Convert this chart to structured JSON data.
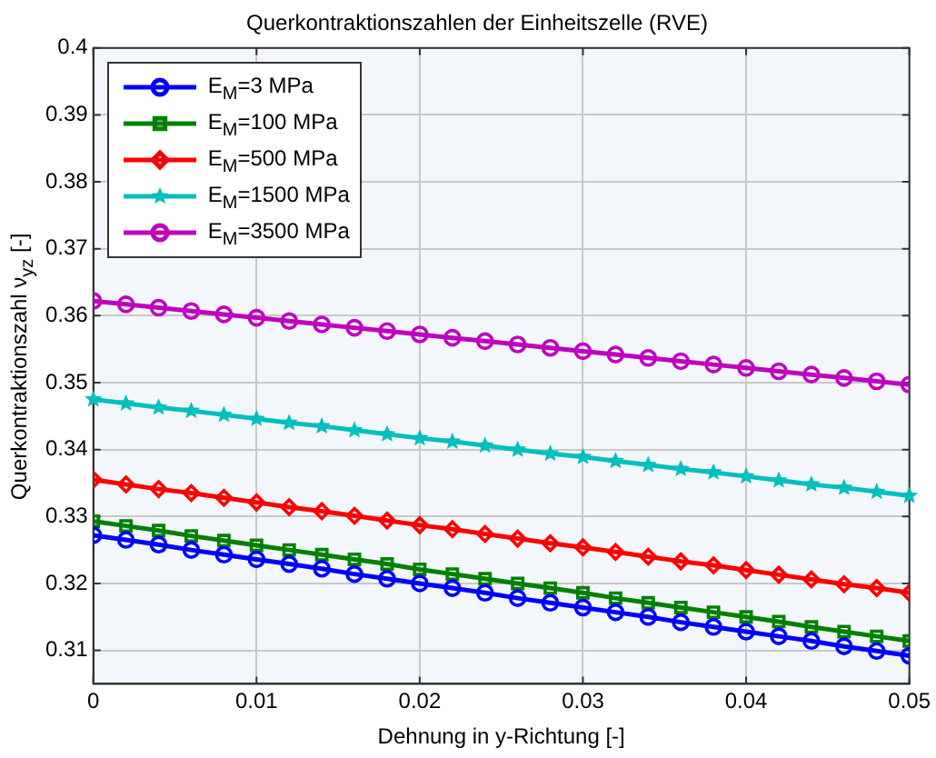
{
  "chart_data": {
    "type": "line",
    "title": "Querkontraktionszahlen der Einheitszelle (RVE)",
    "xlabel": "Dehnung in y-Richtung [-]",
    "ylabel": "Querkontraktionszahl ν$_{yz}$ [-]",
    "x": [
      0,
      0.002,
      0.004,
      0.006,
      0.008,
      0.01,
      0.012,
      0.014,
      0.016,
      0.018,
      0.02,
      0.022,
      0.024,
      0.026,
      0.028,
      0.03,
      0.032,
      0.034,
      0.036,
      0.038,
      0.04,
      0.042,
      0.044,
      0.046,
      0.048,
      0.05
    ],
    "series": [
      {
        "name": "E$_{M}$=3 MPa",
        "color": "#0000ff",
        "marker": "circle",
        "values": [
          0.3272,
          0.3265,
          0.3258,
          0.325,
          0.3243,
          0.3236,
          0.3229,
          0.3222,
          0.3214,
          0.3207,
          0.32,
          0.3193,
          0.3186,
          0.3178,
          0.3171,
          0.3164,
          0.3157,
          0.315,
          0.3142,
          0.3135,
          0.3128,
          0.3121,
          0.3114,
          0.3106,
          0.3099,
          0.3092
        ]
      },
      {
        "name": "E$_{M}$=100 MPa",
        "color": "#008000",
        "marker": "square",
        "values": [
          0.3293,
          0.3286,
          0.3279,
          0.3271,
          0.3264,
          0.3257,
          0.325,
          0.3243,
          0.3236,
          0.3229,
          0.3221,
          0.3214,
          0.3207,
          0.32,
          0.3193,
          0.3186,
          0.3178,
          0.3171,
          0.3164,
          0.3157,
          0.315,
          0.3143,
          0.3135,
          0.3128,
          0.3121,
          0.3114
        ]
      },
      {
        "name": "E$_{M}$=500 MPa",
        "color": "#ff0000",
        "marker": "diamond",
        "values": [
          0.3355,
          0.3348,
          0.3341,
          0.3335,
          0.3328,
          0.3321,
          0.3314,
          0.3308,
          0.3301,
          0.3294,
          0.3287,
          0.3281,
          0.3274,
          0.3267,
          0.326,
          0.3254,
          0.3247,
          0.324,
          0.3233,
          0.3227,
          0.322,
          0.3213,
          0.3206,
          0.3199,
          0.3193,
          0.3186
        ]
      },
      {
        "name": "E$_{M}$=1500 MPa",
        "color": "#00bfbf",
        "marker": "star",
        "values": [
          0.3475,
          0.3469,
          0.3463,
          0.3458,
          0.3452,
          0.3446,
          0.344,
          0.3435,
          0.3429,
          0.3423,
          0.3417,
          0.3412,
          0.3406,
          0.34,
          0.3394,
          0.3389,
          0.3383,
          0.3377,
          0.3371,
          0.3366,
          0.336,
          0.3354,
          0.3348,
          0.3343,
          0.3337,
          0.3331
        ]
      },
      {
        "name": "E$_{M}$=3500 MPa",
        "color": "#bf00bf",
        "marker": "circle",
        "values": [
          0.3622,
          0.3617,
          0.3612,
          0.3607,
          0.3602,
          0.3597,
          0.3592,
          0.3587,
          0.3582,
          0.3577,
          0.3572,
          0.3567,
          0.3562,
          0.3557,
          0.3552,
          0.3547,
          0.3542,
          0.3537,
          0.3532,
          0.3527,
          0.3522,
          0.3517,
          0.3512,
          0.3507,
          0.3502,
          0.3497
        ]
      }
    ],
    "xlim": [
      0,
      0.05
    ],
    "xticks": [
      0,
      0.01,
      0.02,
      0.03,
      0.04,
      0.05
    ],
    "ylim": [
      0.305,
      0.4
    ],
    "yticks": [
      0.31,
      0.32,
      0.33,
      0.34,
      0.35,
      0.36,
      0.37,
      0.38,
      0.39,
      0.4
    ],
    "grid": true,
    "legend": "top left",
    "line_style": "solid"
  }
}
